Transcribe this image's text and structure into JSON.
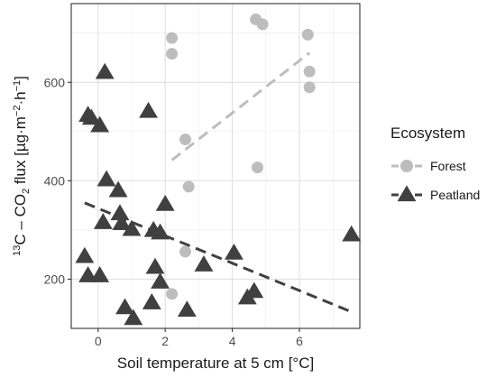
{
  "chart_data": {
    "type": "scatter",
    "xlabel": "Soil temperature at 5 cm [°C]",
    "ylabel": {
      "sup1": "13",
      "part1": "C – CO",
      "sub": "2",
      "part2": " flux [µg·m",
      "sup2": "−2",
      "part3": "·h",
      "sup3": "−1",
      "part4": "]"
    },
    "xlim": [
      -0.8,
      7.8
    ],
    "ylim": [
      100,
      760
    ],
    "x_ticks": [
      0,
      2,
      4,
      6
    ],
    "x_tick_labels": [
      "0",
      "2",
      "4",
      "6"
    ],
    "y_ticks": [
      200,
      400,
      600
    ],
    "y_tick_labels": [
      "200",
      "400",
      "600"
    ],
    "grid": true,
    "legend": {
      "title": "Ecosystem",
      "position": "right"
    },
    "series": [
      {
        "name": "Forest",
        "marker": "circle",
        "color": "#bdbdbd",
        "points": [
          {
            "x": 2.2,
            "y": 690
          },
          {
            "x": 2.2,
            "y": 658
          },
          {
            "x": 2.6,
            "y": 484
          },
          {
            "x": 2.7,
            "y": 388
          },
          {
            "x": 2.6,
            "y": 256
          },
          {
            "x": 2.2,
            "y": 170
          },
          {
            "x": 4.7,
            "y": 728
          },
          {
            "x": 4.9,
            "y": 718
          },
          {
            "x": 4.75,
            "y": 427
          },
          {
            "x": 6.25,
            "y": 697
          },
          {
            "x": 6.3,
            "y": 622
          },
          {
            "x": 6.3,
            "y": 590
          }
        ],
        "trend": {
          "x": [
            2.2,
            6.3
          ],
          "y": [
            442,
            660
          ]
        }
      },
      {
        "name": "Peatland",
        "marker": "triangle",
        "color": "#404040",
        "points": [
          {
            "x": 0.2,
            "y": 620
          },
          {
            "x": 1.5,
            "y": 541
          },
          {
            "x": -0.3,
            "y": 533
          },
          {
            "x": -0.2,
            "y": 527
          },
          {
            "x": 0.05,
            "y": 512
          },
          {
            "x": 0.25,
            "y": 402
          },
          {
            "x": 0.6,
            "y": 380
          },
          {
            "x": 2.0,
            "y": 352
          },
          {
            "x": 0.65,
            "y": 333
          },
          {
            "x": 0.15,
            "y": 315
          },
          {
            "x": 0.7,
            "y": 313
          },
          {
            "x": 1.0,
            "y": 301
          },
          {
            "x": 1.65,
            "y": 299
          },
          {
            "x": 1.85,
            "y": 294
          },
          {
            "x": 7.55,
            "y": 290
          },
          {
            "x": -0.4,
            "y": 246
          },
          {
            "x": 4.05,
            "y": 253
          },
          {
            "x": 3.15,
            "y": 229
          },
          {
            "x": 1.7,
            "y": 224
          },
          {
            "x": -0.3,
            "y": 207
          },
          {
            "x": 0.05,
            "y": 207
          },
          {
            "x": 1.85,
            "y": 194
          },
          {
            "x": 4.65,
            "y": 175
          },
          {
            "x": 4.45,
            "y": 162
          },
          {
            "x": 1.6,
            "y": 152
          },
          {
            "x": 0.8,
            "y": 142
          },
          {
            "x": 2.65,
            "y": 137
          },
          {
            "x": 1.05,
            "y": 120
          }
        ],
        "trend": {
          "x": [
            -0.4,
            7.5
          ],
          "y": [
            355,
            135
          ]
        }
      }
    ]
  }
}
